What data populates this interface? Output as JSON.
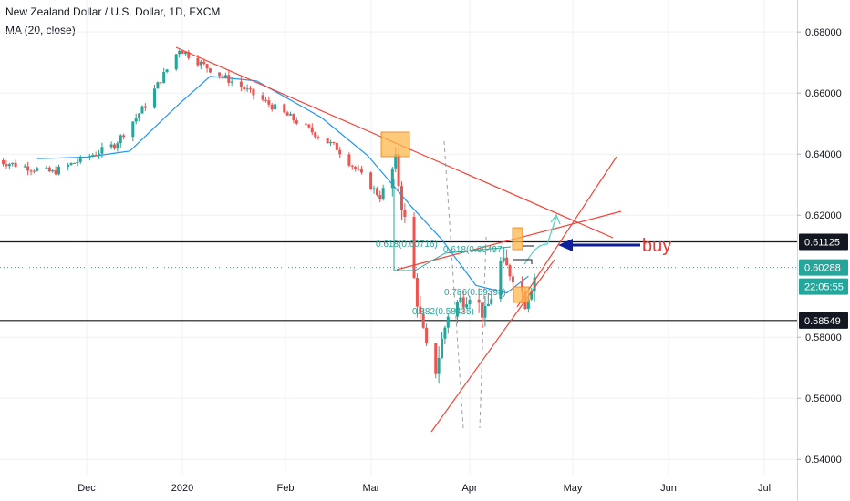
{
  "header": {
    "title": "New Zealand Dollar / U.S. Dollar, 1D, FXCM",
    "indicator": "MA (20, close)"
  },
  "colors": {
    "up": "#26a69a",
    "down": "#ef5350",
    "ma": "#2196f3",
    "trend": "#f44336",
    "annotation_text": "#e53935",
    "arrow": "#0d1f9c",
    "box": "#ffb74d",
    "fib": "#26a69a"
  },
  "annotation": {
    "buy_label": "buy"
  },
  "fib_labels": [
    "0.618(0.60716)",
    "0.618(0.60497)",
    "0.786(0.59398)",
    "0.382(0.58435)"
  ],
  "chart_data": {
    "type": "candlestick",
    "xlabels": [
      "Dec",
      "2020",
      "Feb",
      "Mar",
      "Apr",
      "May",
      "Jun",
      "Jul"
    ],
    "ylim": [
      0.535,
      0.6905
    ],
    "yticks": [
      "0.68000",
      "0.66000",
      "0.64000",
      "0.62000",
      "0.58000",
      "0.56000",
      "0.54000"
    ],
    "price_tags": [
      {
        "value": 0.61125,
        "label": "0.61125",
        "style": "black"
      },
      {
        "value": 0.60288,
        "label": "0.60288",
        "style": "teal"
      },
      {
        "value": 0.58549,
        "label": "0.58549",
        "style": "black"
      }
    ],
    "countdown": "22:05:55",
    "horizontal_levels": [
      0.61125,
      0.58549
    ],
    "current_price": 0.60288,
    "series_ma": [
      [
        "2019-11-15",
        0.6385
      ],
      [
        "2019-12-01",
        0.639
      ],
      [
        "2019-12-15",
        0.641
      ],
      [
        "2019-12-31",
        0.6565
      ],
      [
        "2020-01-10",
        0.6655
      ],
      [
        "2020-01-25",
        0.664
      ],
      [
        "2020-02-15",
        0.652
      ],
      [
        "2020-03-01",
        0.6395
      ],
      [
        "2020-03-15",
        0.623
      ],
      [
        "2020-03-25",
        0.612
      ],
      [
        "2020-04-05",
        0.597
      ],
      [
        "2020-04-15",
        0.5945
      ],
      [
        "2020-04-22",
        0.6
      ]
    ]
  }
}
